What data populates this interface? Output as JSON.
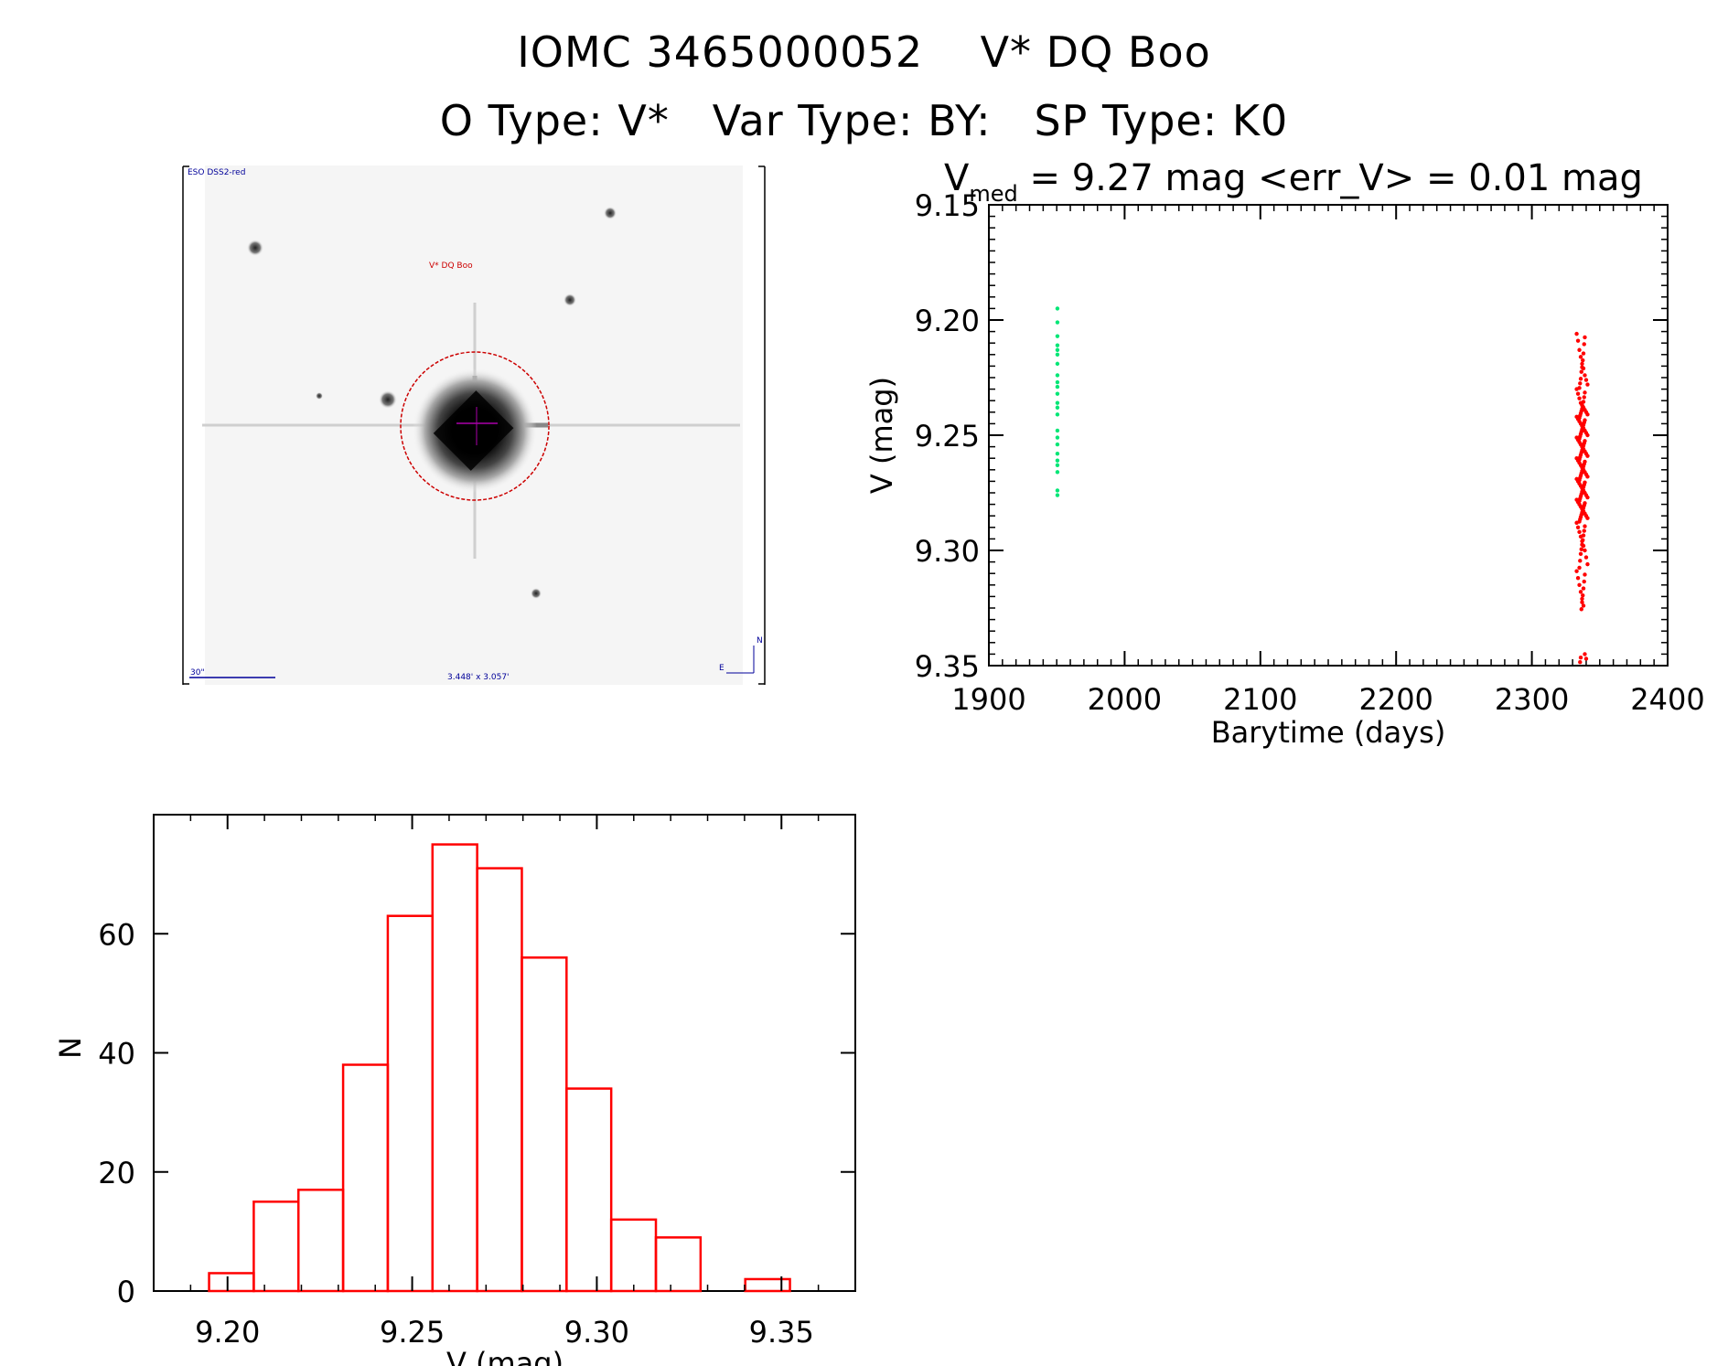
{
  "header": {
    "line1": "IOMC 3465000052    V* DQ Boo",
    "line2": "O Type: V*   Var Type: BY:   SP Type: K0"
  },
  "image_panel": {
    "survey_label": "ESO DSS2-red",
    "target_label": "V* DQ Boo",
    "scale_label": "30\"",
    "fov_label": "3.448' x 3.057'",
    "compass_n": "N",
    "compass_e": "E"
  },
  "chart_data": [
    {
      "type": "scatter",
      "title_main": "V",
      "title_sub": "med",
      "title_rest": " = 9.27 mag <err_V> = 0.01 mag",
      "xlabel": "Barytime (days)",
      "ylabel": "V (mag)",
      "xlim": [
        1900,
        2400
      ],
      "ylim": [
        9.35,
        9.15
      ],
      "y_inverted": true,
      "xticks": [
        1900,
        2000,
        2100,
        2200,
        2300,
        2400
      ],
      "yticks": [
        "9.15",
        "9.20",
        "9.25",
        "9.30",
        "9.35"
      ],
      "colors": {
        "series1": "#00e676",
        "series2": "#ff0000"
      },
      "series": [
        {
          "name": "",
          "color": "#00e676",
          "x": [
            1950.5,
            1950.5,
            1950.5,
            1950.5,
            1950.5,
            1950.5,
            1950.5,
            1950.5,
            1950.5,
            1950.5,
            1950.5,
            1950.5,
            1950.5,
            1950.5,
            1950.5,
            1950.5,
            1950.5,
            1950.5,
            1950.5,
            1950.5,
            1950.5,
            1950.5,
            1950.5
          ],
          "y": [
            9.195,
            9.201,
            9.207,
            9.211,
            9.213,
            9.215,
            9.219,
            9.224,
            9.227,
            9.229,
            9.232,
            9.236,
            9.238,
            9.241,
            9.248,
            9.251,
            9.254,
            9.258,
            9.261,
            9.263,
            9.266,
            9.274,
            9.276
          ]
        },
        {
          "name": "",
          "color": "#ff0000",
          "x": [],
          "y": [],
          "x_center": 2337,
          "x_spread": 4,
          "y_values": [
            9.206,
            9.209,
            9.213,
            9.216,
            9.219,
            9.221,
            9.224,
            9.226,
            9.228,
            9.23,
            9.232,
            9.234,
            9.236,
            9.237,
            9.238,
            9.239,
            9.24,
            9.241,
            9.242,
            9.243,
            9.244,
            9.245,
            9.246,
            9.247,
            9.248,
            9.249,
            9.25,
            9.251,
            9.252,
            9.253,
            9.254,
            9.255,
            9.256,
            9.257,
            9.258,
            9.259,
            9.26,
            9.261,
            9.262,
            9.263,
            9.264,
            9.265,
            9.266,
            9.267,
            9.268,
            9.269,
            9.27,
            9.271,
            9.272,
            9.273,
            9.274,
            9.275,
            9.276,
            9.277,
            9.278,
            9.279,
            9.28,
            9.281,
            9.282,
            9.283,
            9.284,
            9.285,
            9.286,
            9.288,
            9.29,
            9.292,
            9.294,
            9.296,
            9.298,
            9.3,
            9.303,
            9.306,
            9.309,
            9.312,
            9.315,
            9.318,
            9.321,
            9.324,
            9.345,
            9.347
          ]
        }
      ]
    },
    {
      "type": "bar",
      "subtype": "histogram",
      "xlabel": "V (mag)",
      "ylabel": "N",
      "xlim": [
        9.18,
        9.37
      ],
      "ylim": [
        0,
        80
      ],
      "xticks": [
        "9.20",
        "9.25",
        "9.30",
        "9.35"
      ],
      "yticks": [
        "0",
        "20",
        "40",
        "60"
      ],
      "bar_color": "#ff0000",
      "bin_width": 0.0121,
      "bin_starts": [
        9.195,
        9.2071,
        9.2192,
        9.2313,
        9.2434,
        9.2555,
        9.2676,
        9.2797,
        9.2918,
        9.3039,
        9.316,
        9.3281,
        9.3402
      ],
      "values": [
        3,
        15,
        17,
        38,
        63,
        75,
        71,
        56,
        34,
        12,
        9,
        0,
        2
      ]
    }
  ]
}
